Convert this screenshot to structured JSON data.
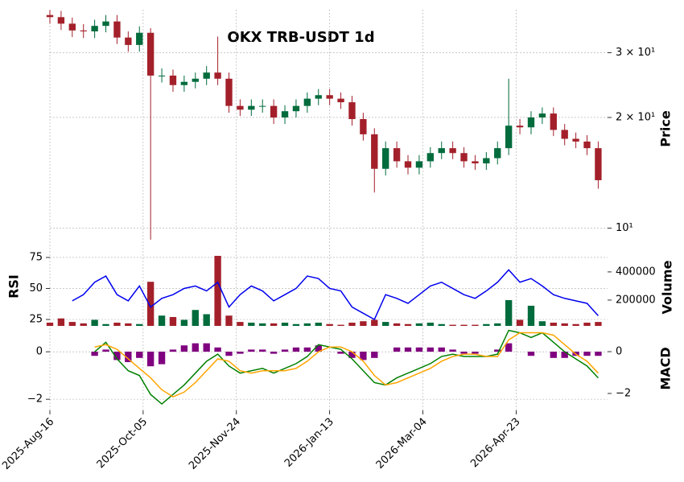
{
  "chart_data": [
    {
      "type": "candlestick",
      "title": "OKX TRB-USDT 1d",
      "ylabel": "Price",
      "log_y": true,
      "grid": true,
      "up_color": "#006b3c",
      "down_color": "#a3202a",
      "x": [
        "2025-Aug-16",
        "2025-Aug-22",
        "2025-Aug-28",
        "2025-Sep-03",
        "2025-Sep-09",
        "2025-Sep-15",
        "2025-Sep-21",
        "2025-Sep-27",
        "2025-Oct-03",
        "2025-Oct-09",
        "2025-Oct-15",
        "2025-Oct-21",
        "2025-Oct-27",
        "2025-Nov-02",
        "2025-Nov-08",
        "2025-Nov-14",
        "2025-Nov-20",
        "2025-Nov-26",
        "2025-Dec-02",
        "2025-Dec-08",
        "2025-Dec-14",
        "2025-Dec-20",
        "2025-Dec-26",
        "2026-Jan-01",
        "2026-Jan-07",
        "2026-Jan-13",
        "2026-Jan-19",
        "2026-Jan-25",
        "2026-Jan-31",
        "2026-Feb-06",
        "2026-Feb-12",
        "2026-Feb-18",
        "2026-Feb-24",
        "2026-Mar-02",
        "2026-Mar-08",
        "2026-Mar-14",
        "2026-Mar-20",
        "2026-Mar-26",
        "2026-Apr-01",
        "2026-Apr-07",
        "2026-Apr-13",
        "2026-Apr-19",
        "2026-Apr-25",
        "2026-May-01",
        "2026-May-07",
        "2026-May-13",
        "2026-May-19",
        "2026-May-25",
        "2026-May-31",
        "2026-Jun-06"
      ],
      "open": [
        38.0,
        37.5,
        36.0,
        34.5,
        34.3,
        35.5,
        36.5,
        33.0,
        31.5,
        34.0,
        26.0,
        26.0,
        24.5,
        25.0,
        25.5,
        26.5,
        25.5,
        21.5,
        21.0,
        21.5,
        21.5,
        20.0,
        20.8,
        21.5,
        22.5,
        23.0,
        22.5,
        22.0,
        19.8,
        18.0,
        14.5,
        16.5,
        15.2,
        14.6,
        15.2,
        16.0,
        16.5,
        16.0,
        15.2,
        15.0,
        15.5,
        16.5,
        19.0,
        18.8,
        20.0,
        20.5,
        18.5,
        17.5,
        17.2,
        16.5
      ],
      "high": [
        39.2,
        39.0,
        37.4,
        35.9,
        36.9,
        38.0,
        38.0,
        34.3,
        35.4,
        35.0,
        27.2,
        27.0,
        26.0,
        26.5,
        27.6,
        33.2,
        26.5,
        22.4,
        22.4,
        22.4,
        22.4,
        21.6,
        22.4,
        23.4,
        23.9,
        23.9,
        23.4,
        22.9,
        20.6,
        18.7,
        17.2,
        17.2,
        15.8,
        15.8,
        16.6,
        17.2,
        17.2,
        16.6,
        15.8,
        16.1,
        17.2,
        25.5,
        19.8,
        20.8,
        21.3,
        21.3,
        19.2,
        18.2,
        17.9,
        17.2
      ],
      "low": [
        36.0,
        34.6,
        33.1,
        32.9,
        32.9,
        34.1,
        31.7,
        30.2,
        30.2,
        9.3,
        24.9,
        23.5,
        23.5,
        24.0,
        24.5,
        24.5,
        20.6,
        20.2,
        20.2,
        20.6,
        19.2,
        19.2,
        20.0,
        20.6,
        21.6,
        21.6,
        21.1,
        19.0,
        17.3,
        12.5,
        13.9,
        14.6,
        14.0,
        14.0,
        14.6,
        15.4,
        15.4,
        14.6,
        14.4,
        14.4,
        14.9,
        15.8,
        18.0,
        18.0,
        19.2,
        17.8,
        16.8,
        16.5,
        15.8,
        12.8
      ],
      "close": [
        37.5,
        36.0,
        34.5,
        34.3,
        35.5,
        36.5,
        33.0,
        31.5,
        34.0,
        26.0,
        26.0,
        24.5,
        25.0,
        25.5,
        26.5,
        25.5,
        21.5,
        21.0,
        21.5,
        21.5,
        20.0,
        20.8,
        21.5,
        22.5,
        23.0,
        22.5,
        22.0,
        19.8,
        18.0,
        14.5,
        16.5,
        15.2,
        14.6,
        15.2,
        16.0,
        16.5,
        16.0,
        15.2,
        15.0,
        15.5,
        16.5,
        19.0,
        18.8,
        20.0,
        20.5,
        18.5,
        17.5,
        17.2,
        16.5,
        13.5
      ],
      "xlim": [
        "2025-Aug-16",
        "2026-Jun-11"
      ],
      "xticks": [
        "2025-Aug-16",
        "2025-Oct-05",
        "2025-Nov-24",
        "2026-Jan-13",
        "2026-Mar-04",
        "2026-Apr-23"
      ],
      "ylim": [
        9.2,
        39.3
      ],
      "yticks": [
        {
          "value": 10,
          "label": "10¹"
        },
        {
          "value": 20,
          "label": "2 × 10¹"
        },
        {
          "value": 30,
          "label": "3 × 10¹"
        }
      ]
    },
    {
      "type": "line",
      "ylabel": "RSI",
      "y2label": "Volume",
      "grid": true,
      "ylim": [
        19.8,
        84.7
      ],
      "yticks": [
        25,
        50,
        75
      ],
      "y2lim": [
        17000,
        588000
      ],
      "y2ticks": [
        200000,
        400000
      ],
      "series": [
        {
          "color": "#0000ee",
          "values": [
            null,
            null,
            40,
            45,
            55,
            60,
            45,
            40,
            52,
            35,
            42,
            45,
            50,
            52,
            48,
            55,
            35,
            45,
            52,
            48,
            40,
            45,
            50,
            60,
            58,
            50,
            48,
            35,
            30,
            25,
            45,
            42,
            38,
            45,
            52,
            55,
            50,
            45,
            42,
            48,
            55,
            65,
            55,
            58,
            52,
            45,
            42,
            40,
            38,
            28
          ]
        },
        {
          "type": "bar",
          "axis": "y2",
          "values": [
            40000,
            70000,
            45000,
            35000,
            60000,
            30000,
            40000,
            35000,
            30000,
            330000,
            90000,
            80000,
            60000,
            130000,
            100000,
            514000,
            90000,
            45000,
            40000,
            35000,
            35000,
            40000,
            30000,
            35000,
            40000,
            30000,
            25000,
            40000,
            50000,
            60000,
            45000,
            35000,
            30000,
            35000,
            40000,
            30000,
            25000,
            25000,
            25000,
            30000,
            35000,
            200000,
            60000,
            160000,
            50000,
            40000,
            35000,
            30000,
            40000,
            45000
          ]
        }
      ]
    },
    {
      "type": "line",
      "y2label": "MACD",
      "grid": true,
      "ylim": [
        -2.47,
        0.92
      ],
      "yticks": [
        {
          "value": -2,
          "label": "−2"
        },
        0
      ],
      "y2lim": [
        -2.81,
        1.04
      ],
      "y2ticks": [
        {
          "value": -2,
          "label": "−2"
        },
        0
      ],
      "series": [
        {
          "color": "#008000",
          "values": [
            null,
            null,
            null,
            null,
            0.0,
            0.4,
            -0.3,
            -0.8,
            -1.0,
            -1.8,
            -2.2,
            -1.8,
            -1.4,
            -0.9,
            -0.4,
            -0.1,
            -0.6,
            -0.9,
            -0.8,
            -0.7,
            -0.9,
            -0.7,
            -0.5,
            -0.2,
            0.3,
            0.2,
            0.1,
            -0.3,
            -0.8,
            -1.3,
            -1.4,
            -1.1,
            -0.9,
            -0.7,
            -0.5,
            -0.2,
            -0.1,
            -0.2,
            -0.2,
            -0.2,
            -0.1,
            0.9,
            0.8,
            0.6,
            0.8,
            0.4,
            0.0,
            -0.3,
            -0.6,
            -1.1
          ]
        },
        {
          "color": "#ffa500",
          "values": [
            null,
            null,
            null,
            null,
            0.2,
            0.3,
            0.1,
            -0.3,
            -0.7,
            -1.1,
            -1.6,
            -1.9,
            -1.7,
            -1.3,
            -0.8,
            -0.3,
            -0.4,
            -0.8,
            -0.9,
            -0.8,
            -0.8,
            -0.8,
            -0.7,
            -0.4,
            0.0,
            0.2,
            0.2,
            0.0,
            -0.4,
            -1.0,
            -1.4,
            -1.3,
            -1.1,
            -0.9,
            -0.7,
            -0.4,
            -0.2,
            -0.1,
            -0.1,
            -0.2,
            -0.2,
            0.5,
            0.8,
            0.8,
            0.8,
            0.7,
            0.3,
            -0.1,
            -0.4,
            -0.9
          ]
        },
        {
          "type": "bar",
          "axis": "y2",
          "color": "#800080",
          "values": [
            null,
            null,
            null,
            null,
            -0.2,
            0.1,
            -0.4,
            -0.5,
            -0.3,
            -0.7,
            -0.6,
            0.1,
            0.3,
            0.4,
            0.4,
            0.2,
            -0.2,
            -0.1,
            0.1,
            0.1,
            -0.1,
            0.1,
            0.2,
            0.2,
            0.3,
            0.0,
            -0.1,
            -0.3,
            -0.4,
            -0.3,
            0.0,
            0.2,
            0.2,
            0.2,
            0.2,
            0.2,
            0.1,
            -0.1,
            -0.1,
            0.0,
            0.1,
            0.4,
            0.0,
            -0.2,
            0.0,
            -0.3,
            -0.3,
            -0.2,
            -0.2,
            -0.2
          ]
        }
      ]
    }
  ]
}
